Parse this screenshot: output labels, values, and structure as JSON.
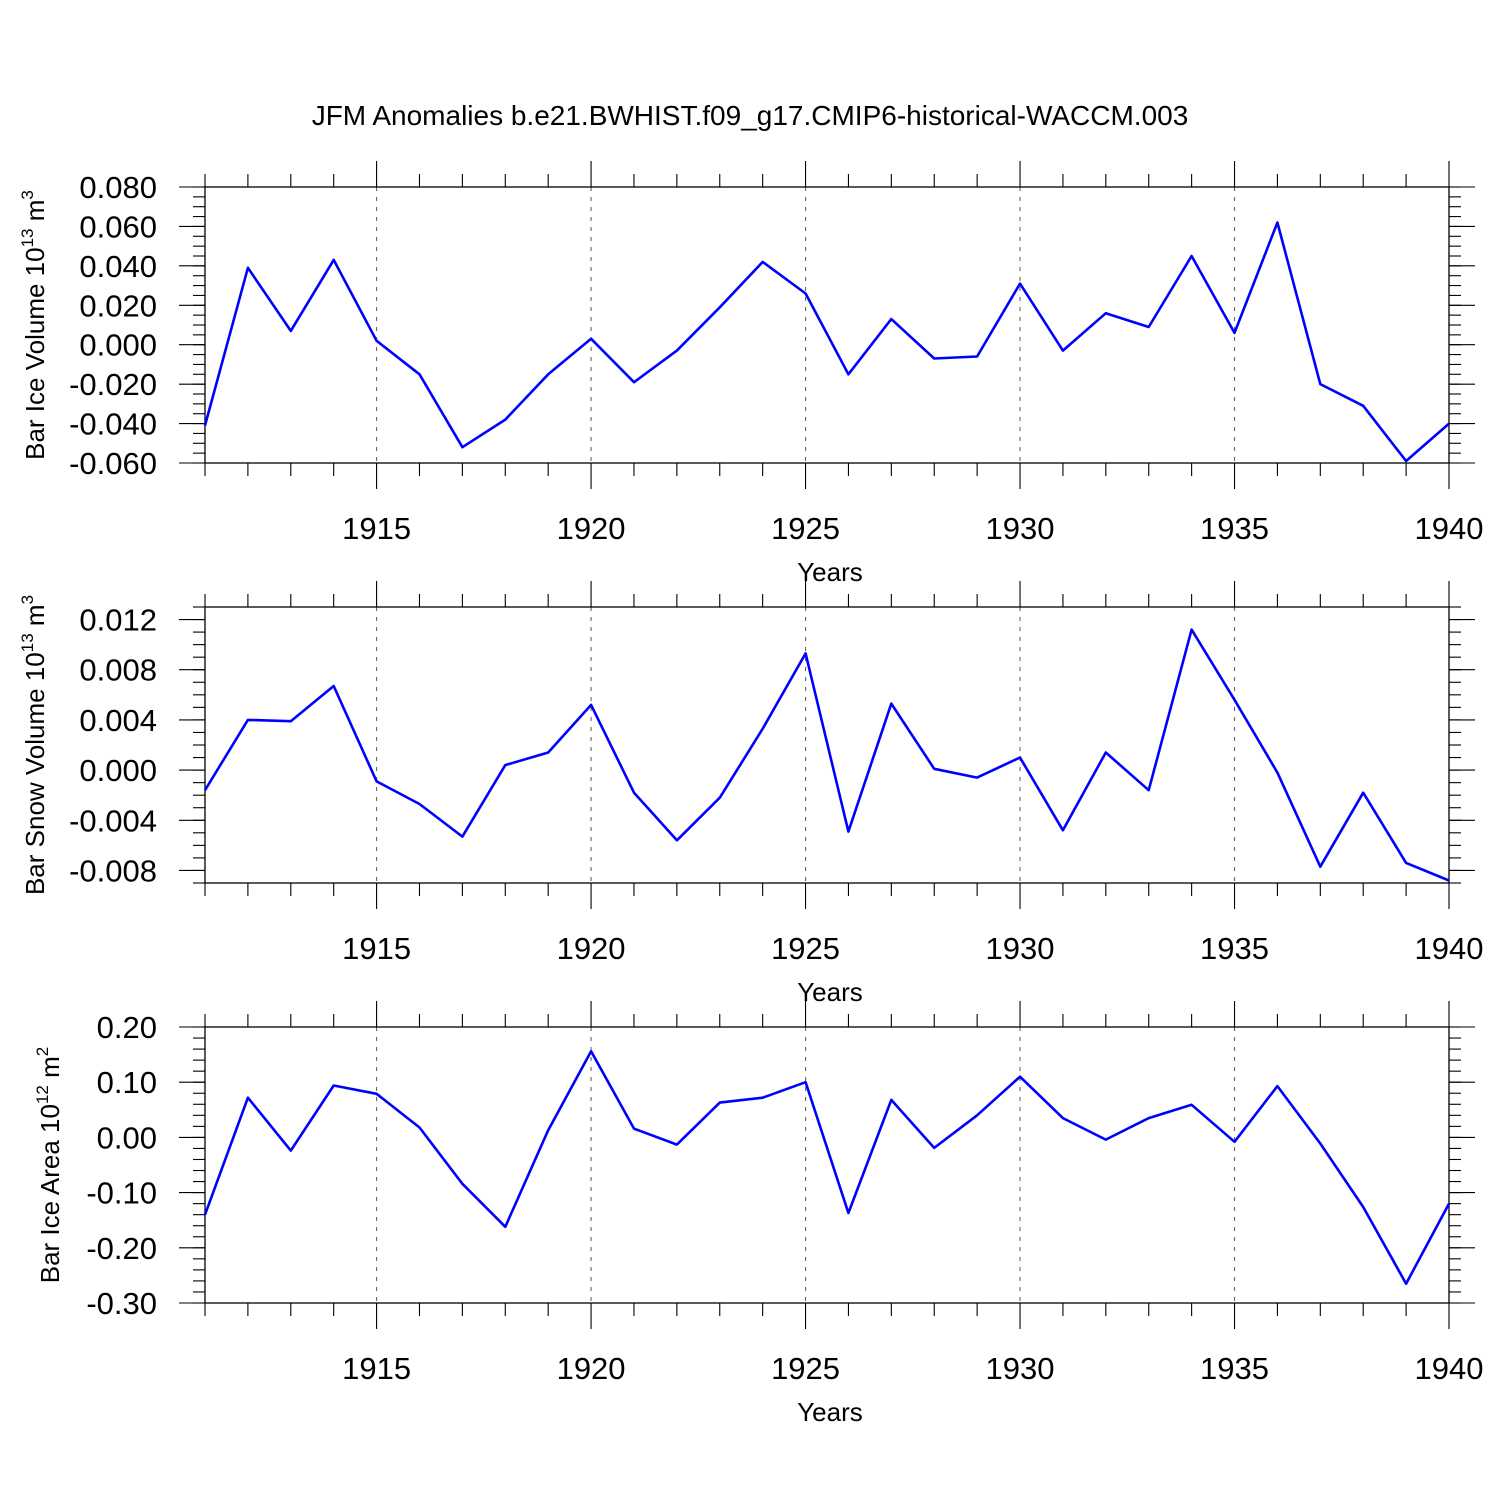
{
  "title": "JFM Anomalies b.e21.BWHIST.f09_g17.CMIP6-historical-WACCM.003",
  "chart_data": [
    {
      "type": "line",
      "title": "JFM Anomalies b.e21.BWHIST.f09_g17.CMIP6-historical-WACCM.003",
      "xlabel": "Years",
      "ylabel": {
        "text": "Bar Ice Volume 10",
        "exp": "13",
        "unit": " m",
        "unit_exp": "3"
      },
      "xlim": [
        1911,
        1940
      ],
      "ylim": [
        -0.06,
        0.08
      ],
      "x_major_ticks": [
        1915,
        1920,
        1925,
        1930,
        1935,
        1940
      ],
      "y_ticks": [
        0.08,
        0.06,
        0.04,
        0.02,
        0.0,
        -0.02,
        -0.04,
        -0.06
      ],
      "y_tick_labels": [
        "0.080",
        "0.060",
        "0.040",
        "0.020",
        "0.000",
        "-0.020",
        "-0.040",
        "-0.060"
      ],
      "y_minor_step": 0.005,
      "grid": "vertical dashed at major x ticks",
      "x": [
        1911,
        1912,
        1913,
        1914,
        1915,
        1916,
        1917,
        1918,
        1919,
        1920,
        1921,
        1922,
        1923,
        1924,
        1925,
        1926,
        1927,
        1928,
        1929,
        1930,
        1931,
        1932,
        1933,
        1934,
        1935,
        1936,
        1937,
        1938,
        1939,
        1940
      ],
      "series": [
        {
          "name": "Bar Ice Volume",
          "color": "#0000ff",
          "values": [
            -0.041,
            0.039,
            0.007,
            0.043,
            0.002,
            -0.015,
            -0.052,
            -0.038,
            -0.015,
            0.003,
            -0.019,
            -0.003,
            0.019,
            0.042,
            0.026,
            -0.015,
            0.013,
            -0.007,
            -0.006,
            0.031,
            -0.003,
            0.016,
            0.009,
            0.045,
            0.006,
            0.062,
            -0.02,
            -0.031,
            -0.059,
            -0.04
          ]
        }
      ]
    },
    {
      "type": "line",
      "xlabel": "Years",
      "ylabel": {
        "text": "Bar Snow Volume 10",
        "exp": "13",
        "unit": " m",
        "unit_exp": "3"
      },
      "xlim": [
        1911,
        1940
      ],
      "ylim": [
        -0.009,
        0.013
      ],
      "x_major_ticks": [
        1915,
        1920,
        1925,
        1930,
        1935,
        1940
      ],
      "y_ticks": [
        0.012,
        0.008,
        0.004,
        0.0,
        -0.004,
        -0.008
      ],
      "y_tick_labels": [
        "0.012",
        "0.008",
        "0.004",
        "0.000",
        "-0.004",
        "-0.008"
      ],
      "y_minor_step": 0.001,
      "grid": "vertical dashed at major x ticks",
      "x": [
        1911,
        1912,
        1913,
        1914,
        1915,
        1916,
        1917,
        1918,
        1919,
        1920,
        1921,
        1922,
        1923,
        1924,
        1925,
        1926,
        1927,
        1928,
        1929,
        1930,
        1931,
        1932,
        1933,
        1934,
        1935,
        1936,
        1937,
        1938,
        1939,
        1940
      ],
      "series": [
        {
          "name": "Bar Snow Volume",
          "color": "#0000ff",
          "values": [
            -0.0016,
            0.004,
            0.0039,
            0.0067,
            -0.0009,
            -0.0027,
            -0.0053,
            0.0004,
            0.0014,
            0.0052,
            -0.0018,
            -0.0056,
            -0.0022,
            0.0033,
            0.0093,
            -0.0049,
            0.0053,
            0.0001,
            -0.0006,
            0.001,
            -0.0048,
            0.0014,
            -0.0016,
            0.0112,
            0.0056,
            -0.0002,
            -0.0077,
            -0.0018,
            -0.0074,
            -0.0088
          ]
        }
      ]
    },
    {
      "type": "line",
      "xlabel": "Years",
      "ylabel": {
        "text": "Bar Ice Area 10",
        "exp": "12",
        "unit": " m",
        "unit_exp": "2"
      },
      "xlim": [
        1911,
        1940
      ],
      "ylim": [
        -0.3,
        0.2
      ],
      "x_major_ticks": [
        1915,
        1920,
        1925,
        1930,
        1935,
        1940
      ],
      "y_ticks": [
        0.2,
        0.1,
        0.0,
        -0.1,
        -0.2,
        -0.3
      ],
      "y_tick_labels": [
        "0.20",
        "0.10",
        "0.00",
        "-0.10",
        "-0.20",
        "-0.30"
      ],
      "y_minor_step": 0.02,
      "grid": "vertical dashed at major x ticks",
      "x": [
        1911,
        1912,
        1913,
        1914,
        1915,
        1916,
        1917,
        1918,
        1919,
        1920,
        1921,
        1922,
        1923,
        1924,
        1925,
        1926,
        1927,
        1928,
        1929,
        1930,
        1931,
        1932,
        1933,
        1934,
        1935,
        1936,
        1937,
        1938,
        1939,
        1940
      ],
      "series": [
        {
          "name": "Bar Ice Area",
          "color": "#0000ff",
          "values": [
            -0.14,
            0.072,
            -0.024,
            0.094,
            0.079,
            0.018,
            -0.084,
            -0.162,
            0.013,
            0.156,
            0.016,
            -0.013,
            0.063,
            0.072,
            0.1,
            -0.137,
            0.068,
            -0.019,
            0.04,
            0.11,
            0.035,
            -0.004,
            0.035,
            0.059,
            -0.008,
            0.093,
            -0.011,
            -0.126,
            -0.265,
            -0.12
          ]
        }
      ]
    }
  ]
}
